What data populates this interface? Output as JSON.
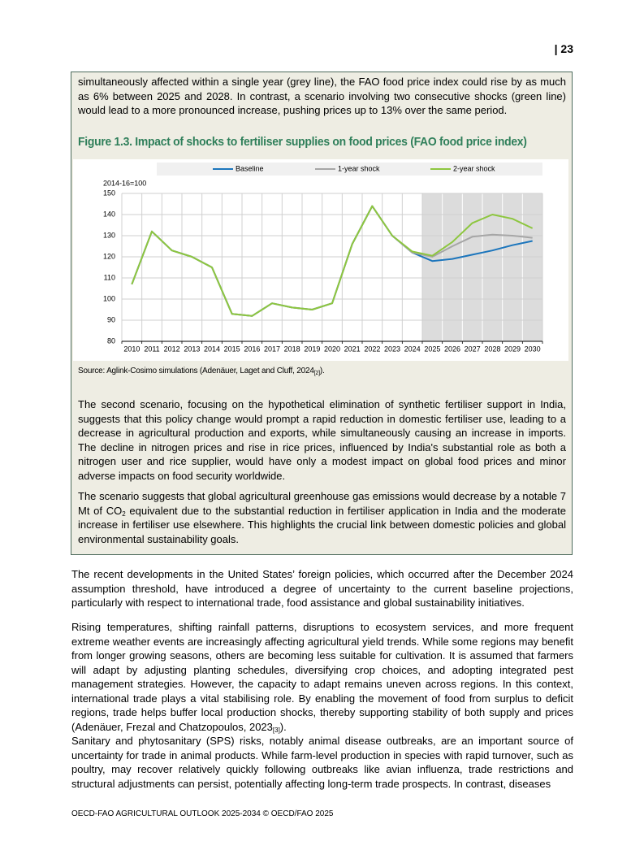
{
  "header": {
    "page_number": "| 23"
  },
  "box": {
    "paragraphs": [
      "simultaneously affected within a single year (grey line), the FAO food price index could rise by as much as 6% between 2025 and 2028. In contrast, a scenario involving two consecutive shocks (green line) would lead to a more pronounced increase, pushing prices up to 13% over the same period.",
      "The second scenario, focusing on the hypothetical elimination of synthetic fertiliser support in India, suggests that this policy change would prompt a rapid reduction in domestic fertiliser use, leading to a decrease in agricultural production and exports, while simultaneously causing an increase in imports. The decline in nitrogen prices and rise in rice prices, influenced by India's substantial role as both a nitrogen user and rice supplier, would have only a modest impact on global food prices and minor adverse impacts on food security worldwide.",
      [
        "The scenario suggests that global agricultural greenhouse gas emissions would decrease by a notable 7 Mt of CO",
        "2",
        " equivalent due to the substantial reduction in fertiliser application in India and the moderate increase in fertiliser use elsewhere. This highlights the crucial link between domestic policies and global environmental sustainability goals."
      ]
    ]
  },
  "figure": {
    "title": "Figure 1.3. Impact of shocks to fertiliser supplies on food prices (FAO food price index)",
    "source": [
      "Source: Aglink-Cosimo simulations (Adenäuer, Laget and Cluff, 2024",
      "[2]",
      ")."
    ]
  },
  "chart_data": {
    "type": "line",
    "y_label": "2014-16=100",
    "categories": [
      "2010",
      "2011",
      "2012",
      "2013",
      "2014",
      "2015",
      "2016",
      "2017",
      "2018",
      "2019",
      "2020",
      "2021",
      "2022",
      "2023",
      "2024",
      "2025",
      "2026",
      "2027",
      "2028",
      "2029",
      "2030"
    ],
    "series": [
      {
        "name": "Baseline",
        "color": "#1b75bc",
        "values": [
          107,
          132,
          123,
          120,
          115,
          93,
          92,
          98,
          96,
          95,
          98,
          126,
          144,
          130,
          122,
          118,
          119,
          121,
          123,
          125.5,
          127.5
        ]
      },
      {
        "name": "1-year shock",
        "color": "#a6a6a6",
        "values": [
          107,
          132,
          123,
          120,
          115,
          93,
          92,
          98,
          96,
          95,
          98,
          126,
          144,
          130,
          122,
          120,
          125,
          129.5,
          130.5,
          130,
          129
        ]
      },
      {
        "name": "2-year shock",
        "color": "#8dc63f",
        "values": [
          107,
          132,
          123,
          120,
          115,
          93,
          92,
          98,
          96,
          95,
          98,
          126,
          144,
          130,
          122.5,
          120.5,
          127,
          136,
          140,
          138,
          133.5
        ]
      }
    ],
    "ylim": [
      80,
      150
    ],
    "yticks": [
      80,
      90,
      100,
      110,
      120,
      130,
      140,
      150
    ],
    "grid": true,
    "shaded_from": "2025"
  },
  "body": {
    "paragraphs": [
      "The recent developments in the United States’ foreign policies, which occurred after the December 2024 assumption threshold, have introduced a degree of uncertainty to the current baseline projections, particularly with respect to international trade, food assistance and global sustainability initiatives.",
      [
        "Rising temperatures, shifting rainfall patterns, disruptions to ecosystem services, and more frequent extreme weather events are increasingly affecting agricultural yield trends. While some regions may benefit from longer growing seasons, others are becoming less suitable for cultivation. It is assumed that farmers will adapt by adjusting planting schedules, diversifying crop choices, and adopting integrated pest management strategies. However, the capacity to adapt remains uneven across regions. In this context, international trade plays a vital stabilising role. By enabling the movement of food from surplus to deficit regions, trade helps buffer local production shocks, thereby supporting stability of both supply and prices (Adenäuer, Frezal and Chatzopoulos, 2023",
        "[3]",
        ")."
      ],
      "Sanitary and phytosanitary (SPS) risks, notably animal disease outbreaks, are an important source of uncertainty for trade in animal products. While farm-level production in species with rapid turnover, such as poultry, may recover relatively quickly following outbreaks like avian influenza, trade restrictions and structural adjustments can persist, potentially affecting long-term trade prospects. In contrast, diseases"
    ]
  },
  "footer": "OECD-FAO AGRICULTURAL OUTLOOK 2025-2034 © OECD/FAO 2025"
}
